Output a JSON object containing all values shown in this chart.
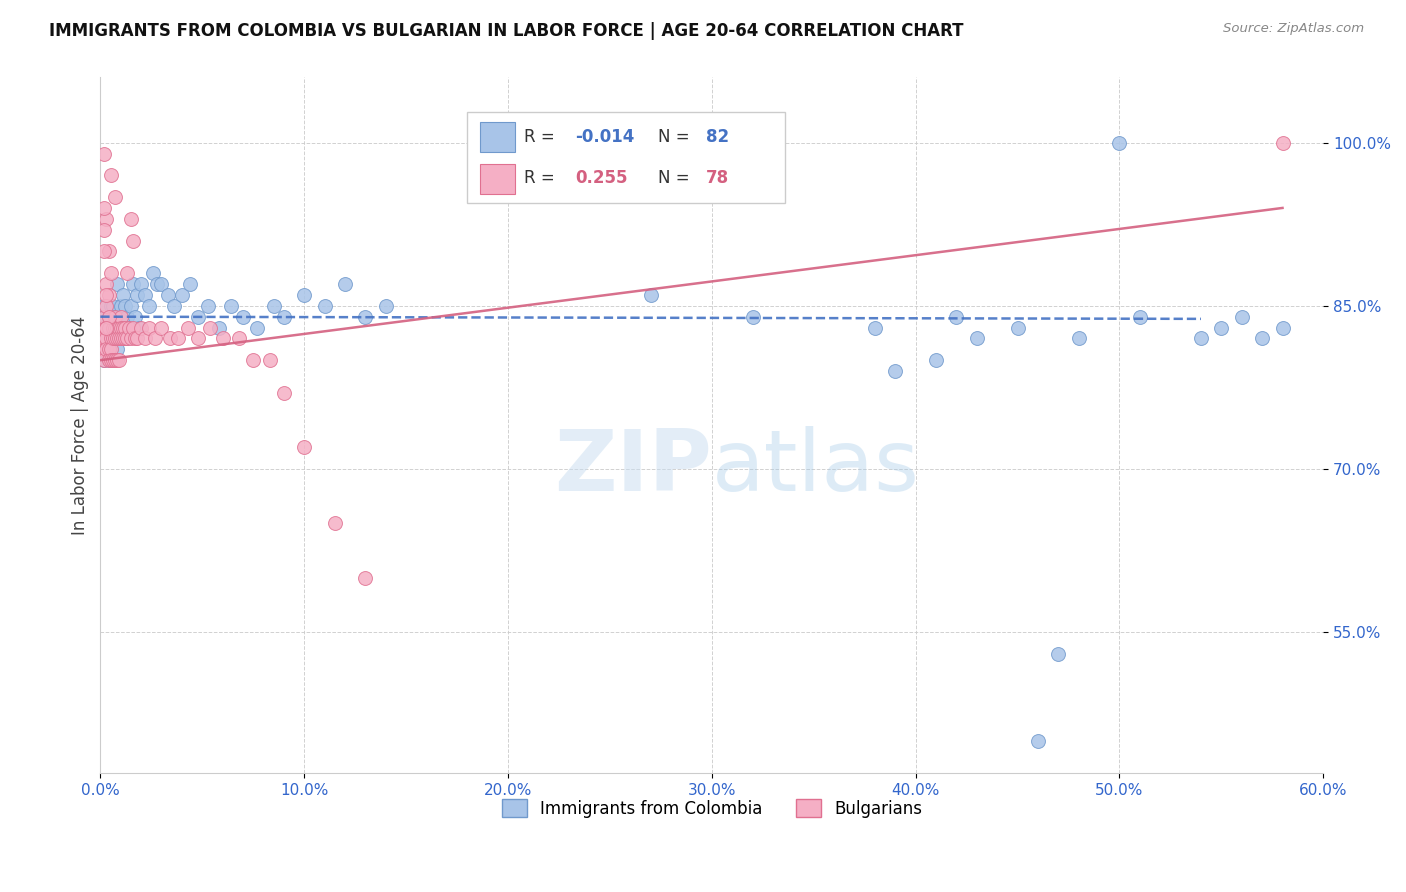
{
  "title": "IMMIGRANTS FROM COLOMBIA VS BULGARIAN IN LABOR FORCE | AGE 20-64 CORRELATION CHART",
  "source": "Source: ZipAtlas.com",
  "xlim": [
    0.0,
    0.6
  ],
  "ylim": [
    0.42,
    1.06
  ],
  "ylabel": "In Labor Force | Age 20-64",
  "colombia_color": "#a8c4e8",
  "bulgaria_color": "#f5afc5",
  "colombia_edge": "#7099cc",
  "bulgaria_edge": "#e07090",
  "trendline_colombia": "#4472c4",
  "trendline_bulgaria": "#d46080",
  "R_colombia": -0.014,
  "N_colombia": 82,
  "R_bulgaria": 0.255,
  "N_bulgaria": 78,
  "watermark_zip": "ZIP",
  "watermark_atlas": "atlas",
  "colombia_x": [
    0.001,
    0.001,
    0.002,
    0.002,
    0.002,
    0.003,
    0.003,
    0.003,
    0.004,
    0.004,
    0.004,
    0.005,
    0.005,
    0.005,
    0.005,
    0.006,
    0.006,
    0.006,
    0.007,
    0.007,
    0.007,
    0.007,
    0.008,
    0.008,
    0.008,
    0.009,
    0.009,
    0.01,
    0.01,
    0.011,
    0.011,
    0.012,
    0.012,
    0.013,
    0.013,
    0.014,
    0.015,
    0.016,
    0.017,
    0.018,
    0.019,
    0.02,
    0.022,
    0.024,
    0.026,
    0.028,
    0.03,
    0.033,
    0.036,
    0.04,
    0.044,
    0.048,
    0.053,
    0.058,
    0.064,
    0.07,
    0.077,
    0.085,
    0.09,
    0.1,
    0.11,
    0.12,
    0.13,
    0.14,
    0.27,
    0.32,
    0.38,
    0.42,
    0.45,
    0.48,
    0.51,
    0.54,
    0.55,
    0.56,
    0.57,
    0.58,
    0.39,
    0.41,
    0.43,
    0.46,
    0.47,
    0.5
  ],
  "colombia_y": [
    0.82,
    0.84,
    0.83,
    0.85,
    0.8,
    0.83,
    0.82,
    0.81,
    0.84,
    0.81,
    0.8,
    0.85,
    0.83,
    0.82,
    0.8,
    0.83,
    0.85,
    0.82,
    0.84,
    0.83,
    0.82,
    0.8,
    0.83,
    0.87,
    0.81,
    0.84,
    0.82,
    0.85,
    0.83,
    0.86,
    0.82,
    0.85,
    0.83,
    0.84,
    0.82,
    0.83,
    0.85,
    0.87,
    0.84,
    0.86,
    0.83,
    0.87,
    0.86,
    0.85,
    0.88,
    0.87,
    0.87,
    0.86,
    0.85,
    0.86,
    0.87,
    0.84,
    0.85,
    0.83,
    0.85,
    0.84,
    0.83,
    0.85,
    0.84,
    0.86,
    0.85,
    0.87,
    0.84,
    0.85,
    0.86,
    0.84,
    0.83,
    0.84,
    0.83,
    0.82,
    0.84,
    0.82,
    0.83,
    0.84,
    0.82,
    0.83,
    0.79,
    0.8,
    0.82,
    0.45,
    0.53,
    1.0
  ],
  "bulgaria_x": [
    0.001,
    0.001,
    0.001,
    0.002,
    0.002,
    0.002,
    0.003,
    0.003,
    0.003,
    0.004,
    0.004,
    0.004,
    0.005,
    0.005,
    0.005,
    0.006,
    0.006,
    0.006,
    0.007,
    0.007,
    0.007,
    0.007,
    0.008,
    0.008,
    0.008,
    0.009,
    0.009,
    0.009,
    0.01,
    0.01,
    0.01,
    0.011,
    0.011,
    0.012,
    0.012,
    0.013,
    0.014,
    0.015,
    0.016,
    0.017,
    0.018,
    0.02,
    0.022,
    0.024,
    0.027,
    0.03,
    0.034,
    0.038,
    0.043,
    0.048,
    0.054,
    0.06,
    0.068,
    0.075,
    0.083,
    0.09,
    0.1,
    0.115,
    0.13,
    0.015,
    0.016,
    0.013,
    0.007,
    0.005,
    0.003,
    0.004,
    0.002,
    0.002,
    0.003,
    0.004,
    0.003,
    0.002,
    0.002,
    0.003,
    0.004,
    0.003,
    0.005,
    0.58
  ],
  "bulgaria_y": [
    0.83,
    0.82,
    0.81,
    0.84,
    0.82,
    0.8,
    0.83,
    0.82,
    0.81,
    0.83,
    0.81,
    0.8,
    0.82,
    0.81,
    0.8,
    0.83,
    0.82,
    0.8,
    0.84,
    0.83,
    0.82,
    0.8,
    0.83,
    0.82,
    0.8,
    0.83,
    0.82,
    0.8,
    0.84,
    0.83,
    0.82,
    0.83,
    0.82,
    0.83,
    0.82,
    0.82,
    0.83,
    0.82,
    0.83,
    0.82,
    0.82,
    0.83,
    0.82,
    0.83,
    0.82,
    0.83,
    0.82,
    0.82,
    0.83,
    0.82,
    0.83,
    0.82,
    0.82,
    0.8,
    0.8,
    0.77,
    0.72,
    0.65,
    0.6,
    0.93,
    0.91,
    0.88,
    0.95,
    0.97,
    0.93,
    0.9,
    0.99,
    0.92,
    0.87,
    0.86,
    0.85,
    0.94,
    0.9,
    0.86,
    0.84,
    0.83,
    0.88,
    1.0
  ]
}
